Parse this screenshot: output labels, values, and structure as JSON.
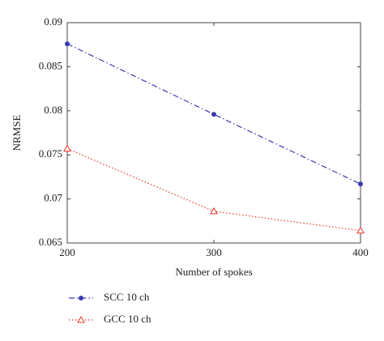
{
  "chart_data": {
    "type": "line",
    "x_label": "Number of spokes",
    "y_label": "NRMSE",
    "x": [
      200,
      300,
      400
    ],
    "xlim": [
      200,
      400
    ],
    "xticks": [
      200,
      300,
      400
    ],
    "ylim": [
      0.065,
      0.09
    ],
    "yticks": [
      0.065,
      0.07,
      0.075,
      0.08,
      0.085,
      0.09
    ],
    "grid": false,
    "legend": "below",
    "series": [
      {
        "name": "SCC 10 ch",
        "color": "#3b3bb0",
        "linestyle": "dashdot",
        "marker": "circle",
        "values": [
          0.0876,
          0.0796,
          0.0717
        ]
      },
      {
        "name": "GCC 10 ch",
        "color": "#e8382c",
        "linestyle": "dotted",
        "marker": "triangle",
        "values": [
          0.0757,
          0.0686,
          0.0664
        ]
      }
    ]
  }
}
